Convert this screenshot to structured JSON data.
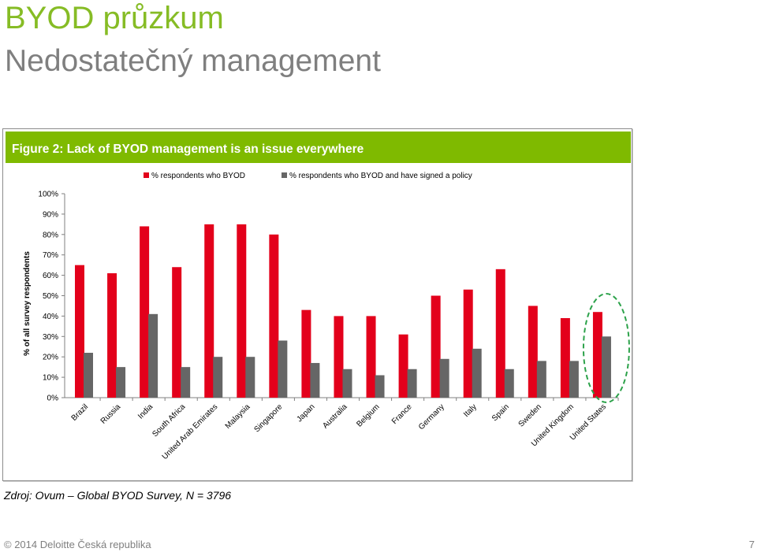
{
  "slide": {
    "title": "BYOD průzkum",
    "subtitle": "Nedostatečný management",
    "source": "Zdroj: Ovum – Global BYOD Survey, N = 3796",
    "footer": "© 2014 Deloitte Česká republika",
    "page_number": "7"
  },
  "figure": {
    "header": "Figure 2: Lack of BYOD management is an issue everywhere"
  },
  "chart_data": {
    "type": "bar",
    "title": "Figure 2: Lack of BYOD management is an issue everywhere",
    "ylabel": "% of all survey respondents",
    "xlabel": "",
    "ylim": [
      0,
      100
    ],
    "yticks": [
      "0%",
      "10%",
      "20%",
      "30%",
      "40%",
      "50%",
      "60%",
      "70%",
      "80%",
      "90%",
      "100%"
    ],
    "legend_position": "top",
    "grid": false,
    "categories": [
      "Brazil",
      "Russia",
      "India",
      "South Africa",
      "United Arab Emirates",
      "Malaysia",
      "Singapore",
      "Japan",
      "Australia",
      "Belgium",
      "France",
      "Germany",
      "Italy",
      "Spain",
      "Sweden",
      "United Kingdom",
      "United States"
    ],
    "series": [
      {
        "name": "% respondents who BYOD",
        "color": "#e3001b",
        "values": [
          65,
          61,
          84,
          64,
          85,
          85,
          80,
          43,
          40,
          40,
          31,
          50,
          53,
          63,
          45,
          39,
          42
        ]
      },
      {
        "name": "% respondents who BYOD and have signed a policy",
        "color": "#666666",
        "values": [
          22,
          15,
          41,
          15,
          20,
          20,
          28,
          17,
          14,
          11,
          14,
          19,
          24,
          14,
          18,
          18,
          30
        ]
      }
    ],
    "highlight": {
      "category": "United States",
      "style": "dashed-ellipse",
      "color": "#2ca24a"
    }
  }
}
